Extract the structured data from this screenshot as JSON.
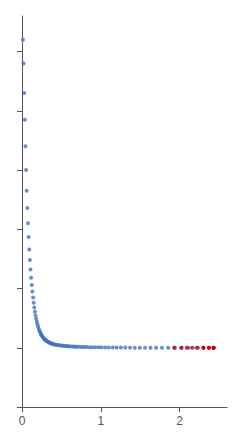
{
  "chart_data": {
    "type": "scatter",
    "series": [
      {
        "color": "#4472c4",
        "x": [
          0.012,
          0.02,
          0.028,
          0.036,
          0.044,
          0.052,
          0.06,
          0.068,
          0.076,
          0.084,
          0.092,
          0.1,
          0.108,
          0.116,
          0.124,
          0.132,
          0.14,
          0.148,
          0.156,
          0.164,
          0.172,
          0.18,
          0.188,
          0.196,
          0.204,
          0.212,
          0.22,
          0.228,
          0.236,
          0.244,
          0.252,
          0.26,
          0.268,
          0.276,
          0.284,
          0.292,
          0.3,
          0.31,
          0.32,
          0.33,
          0.34,
          0.35,
          0.36,
          0.37,
          0.38,
          0.39,
          0.4,
          0.415,
          0.43,
          0.445,
          0.46,
          0.48,
          0.5,
          0.52,
          0.54,
          0.56,
          0.58,
          0.6,
          0.625,
          0.65,
          0.675,
          0.7,
          0.73,
          0.76,
          0.79,
          0.82,
          0.855,
          0.89,
          0.93,
          0.97,
          1.01,
          1.055,
          1.1,
          1.15,
          1.2,
          1.255,
          1.31,
          1.37,
          1.43,
          1.495,
          1.56,
          1.63,
          1.7,
          1.775,
          1.855,
          1.94,
          2.025,
          2.115,
          2.21
        ],
        "values": [
          5200,
          4800,
          4300,
          3850,
          3400,
          3000,
          2650,
          2360,
          2100,
          1870,
          1660,
          1480,
          1320,
          1180,
          1060,
          950,
          850,
          760,
          680,
          608,
          545,
          490,
          440,
          396,
          357,
          322,
          292,
          265,
          242,
          221,
          203,
          187,
          172,
          159,
          148,
          137,
          127,
          117,
          108,
          100,
          93,
          86,
          80,
          74,
          69,
          65,
          60.5,
          55.8,
          51.5,
          47.8,
          44.3,
          40.5,
          37.2,
          34.3,
          31.6,
          29.2,
          26.9,
          24.8,
          22.6,
          20.6,
          18.8,
          17.1,
          15.5,
          14.0,
          12.6,
          11.4,
          10.2,
          9.1,
          8.1,
          7.1,
          6.3,
          5.5,
          4.8,
          4.2,
          3.6,
          3.0,
          2.55,
          2.12,
          1.76,
          1.44,
          1.17,
          0.95,
          0.76,
          0.6,
          0.47,
          0.37,
          0.28,
          0.21,
          0.155
        ],
        "yerr": [
          0,
          0,
          0,
          0,
          0,
          0,
          0,
          0,
          0,
          0,
          0,
          0,
          0,
          0,
          0,
          0,
          0,
          0,
          0,
          0,
          0,
          0,
          0,
          0,
          0,
          0,
          0,
          0,
          0,
          0,
          0,
          0,
          0,
          0,
          0,
          0,
          0,
          0,
          0,
          0,
          0,
          0,
          0,
          0,
          0,
          0,
          0,
          0,
          0,
          0,
          0,
          0,
          0,
          0,
          0,
          0,
          0,
          0,
          0,
          0,
          0,
          0,
          0.3,
          0.35,
          0.4,
          0.45,
          0.5,
          0.55,
          0.6,
          0.65,
          0.7,
          0.75,
          0.8,
          0.85,
          0.9,
          0.95,
          1.0,
          1.1,
          1.2,
          1.3,
          1.4,
          1.5,
          1.6,
          1.8,
          2.0,
          2.2,
          2.5,
          2.8,
          3.2
        ]
      },
      {
        "color": "#c00000",
        "x": [
          1.93,
          2.02,
          2.09,
          2.16,
          2.23,
          2.3,
          2.37,
          2.43,
          2.43,
          2.37,
          2.3,
          2.43
        ],
        "values": [
          0.09,
          0.22,
          0.38,
          0.58,
          0.8,
          0.62,
          1.05,
          1.28,
          1.5,
          0.78,
          0.4,
          1.75
        ]
      }
    ],
    "xlim": [
      0,
      2.6
    ],
    "xticks": [
      0,
      1,
      2
    ],
    "ylim": [
      -1000,
      5600
    ],
    "yticks": [
      -1000,
      0,
      1000,
      2000,
      3000,
      4000,
      5000
    ],
    "tick_labels": "x",
    "grid": false
  }
}
